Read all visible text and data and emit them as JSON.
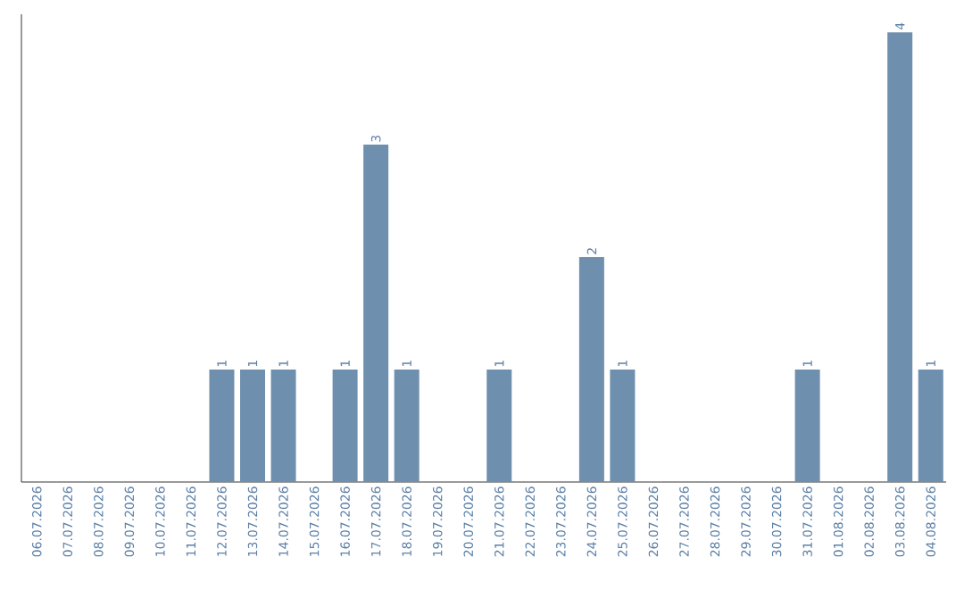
{
  "chart_data": {
    "type": "bar",
    "color": "#6e8fae",
    "categories": [
      "06.07.2026",
      "07.07.2026",
      "08.07.2026",
      "09.07.2026",
      "10.07.2026",
      "11.07.2026",
      "12.07.2026",
      "13.07.2026",
      "14.07.2026",
      "15.07.2026",
      "16.07.2026",
      "17.07.2026",
      "18.07.2026",
      "19.07.2026",
      "20.07.2026",
      "21.07.2026",
      "22.07.2026",
      "23.07.2026",
      "24.07.2026",
      "25.07.2026",
      "26.07.2026",
      "27.07.2026",
      "28.07.2026",
      "29.07.2026",
      "30.07.2026",
      "31.07.2026",
      "01.08.2026",
      "02.08.2026",
      "03.08.2026",
      "04.08.2026"
    ],
    "values": [
      0,
      0,
      0,
      0,
      0,
      0,
      1,
      1,
      1,
      0,
      1,
      3,
      1,
      0,
      0,
      1,
      0,
      0,
      2,
      1,
      0,
      0,
      0,
      0,
      0,
      1,
      0,
      0,
      4,
      1
    ],
    "value_labels": [
      null,
      null,
      null,
      null,
      null,
      null,
      "1",
      "1",
      "1",
      null,
      "1",
      "3",
      "1",
      null,
      null,
      "1",
      null,
      null,
      "2",
      "1",
      null,
      null,
      null,
      null,
      null,
      "1",
      null,
      null,
      "4",
      "1"
    ]
  }
}
